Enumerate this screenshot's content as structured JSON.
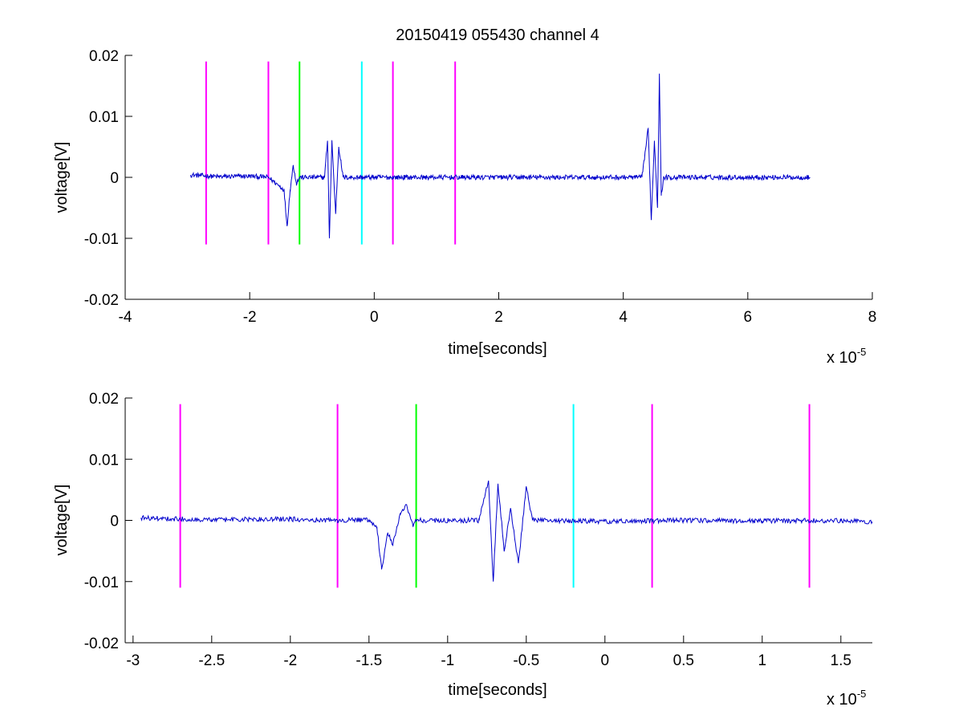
{
  "chart_data": [
    {
      "type": "line",
      "title": "20150419 055430 channel 4",
      "xlabel": "time[seconds]",
      "ylabel": "voltage[V]",
      "x_exponent_base": "x 10",
      "x_exponent_power": "-5",
      "xlim": [
        -4,
        8
      ],
      "ylim": [
        -0.02,
        0.02
      ],
      "x_ticks": [
        -4,
        -2,
        0,
        2,
        4,
        6,
        8
      ],
      "x_tick_labels": [
        "-4",
        "-2",
        "0",
        "2",
        "4",
        "6",
        "8"
      ],
      "y_ticks": [
        0.02,
        0.01,
        0,
        -0.01,
        -0.02
      ],
      "y_tick_labels": [
        "0.02",
        "0.01",
        "0",
        "-0.01",
        "-0.02"
      ],
      "grid": false,
      "legend": "none",
      "vertical_markers": [
        {
          "x": -2.7,
          "ymin": -0.011,
          "ymax": 0.019,
          "color": "#ff00ff"
        },
        {
          "x": -1.7,
          "ymin": -0.011,
          "ymax": 0.019,
          "color": "#ff00ff"
        },
        {
          "x": -1.2,
          "ymin": -0.011,
          "ymax": 0.019,
          "color": "#00ff00"
        },
        {
          "x": -0.2,
          "ymin": -0.011,
          "ymax": 0.019,
          "color": "#00ffff"
        },
        {
          "x": 0.3,
          "ymin": -0.011,
          "ymax": 0.019,
          "color": "#ff00ff"
        },
        {
          "x": 1.3,
          "ymin": -0.011,
          "ymax": 0.019,
          "color": "#ff00ff"
        }
      ],
      "series": [
        {
          "color": "#0000cc",
          "x_range": [
            -2.95,
            7.0
          ],
          "noise_amplitude": 0.0004,
          "points": [
            [
              -2.95,
              0.0004
            ],
            [
              -2.5,
              0.0001
            ],
            [
              -2.0,
              0.0002
            ],
            [
              -1.7,
              0.0
            ],
            [
              -1.45,
              -0.002
            ],
            [
              -1.4,
              -0.008
            ],
            [
              -1.35,
              -0.002
            ],
            [
              -1.3,
              0.002
            ],
            [
              -1.25,
              -0.001
            ],
            [
              -1.2,
              0.0
            ],
            [
              -0.8,
              0.0
            ],
            [
              -0.75,
              0.006
            ],
            [
              -0.72,
              -0.01
            ],
            [
              -0.68,
              0.006
            ],
            [
              -0.62,
              -0.006
            ],
            [
              -0.57,
              0.005
            ],
            [
              -0.5,
              0.0
            ],
            [
              0.0,
              0.0
            ],
            [
              2.0,
              0.0
            ],
            [
              4.3,
              0.0
            ],
            [
              4.4,
              0.008
            ],
            [
              4.45,
              -0.007
            ],
            [
              4.5,
              0.006
            ],
            [
              4.55,
              -0.005
            ],
            [
              4.58,
              0.017
            ],
            [
              4.61,
              -0.003
            ],
            [
              4.65,
              0.0
            ],
            [
              6.0,
              0.0
            ],
            [
              7.0,
              0.0
            ]
          ]
        }
      ]
    },
    {
      "type": "line",
      "title": "",
      "xlabel": "time[seconds]",
      "ylabel": "voltage[V]",
      "x_exponent_base": "x 10",
      "x_exponent_power": "-5",
      "xlim": [
        -3.05,
        1.7
      ],
      "ylim": [
        -0.02,
        0.02
      ],
      "x_ticks": [
        -3,
        -2.5,
        -2,
        -1.5,
        -1,
        -0.5,
        0,
        0.5,
        1,
        1.5
      ],
      "x_tick_labels": [
        "-3",
        "-2.5",
        "-2",
        "-1.5",
        "-1",
        "-0.5",
        "0",
        "0.5",
        "1",
        "1.5"
      ],
      "y_ticks": [
        0.02,
        0.01,
        0,
        -0.01,
        -0.02
      ],
      "y_tick_labels": [
        "0.02",
        "0.01",
        "0",
        "-0.01",
        "-0.02"
      ],
      "grid": false,
      "legend": "none",
      "vertical_markers": [
        {
          "x": -2.7,
          "ymin": -0.011,
          "ymax": 0.019,
          "color": "#ff00ff"
        },
        {
          "x": -1.7,
          "ymin": -0.011,
          "ymax": 0.019,
          "color": "#ff00ff"
        },
        {
          "x": -1.2,
          "ymin": -0.011,
          "ymax": 0.019,
          "color": "#00ff00"
        },
        {
          "x": -0.2,
          "ymin": -0.011,
          "ymax": 0.019,
          "color": "#00ffff"
        },
        {
          "x": 0.3,
          "ymin": -0.011,
          "ymax": 0.019,
          "color": "#ff00ff"
        },
        {
          "x": 1.3,
          "ymin": -0.011,
          "ymax": 0.019,
          "color": "#ff00ff"
        }
      ],
      "series": [
        {
          "color": "#0000cc",
          "x_range": [
            -2.95,
            1.7
          ],
          "noise_amplitude": 0.0004,
          "points": [
            [
              -2.95,
              0.0004
            ],
            [
              -2.5,
              0.0001
            ],
            [
              -2.0,
              0.0002
            ],
            [
              -1.7,
              0.0
            ],
            [
              -1.5,
              0.0001
            ],
            [
              -1.45,
              -0.001
            ],
            [
              -1.42,
              -0.008
            ],
            [
              -1.38,
              -0.002
            ],
            [
              -1.35,
              -0.004
            ],
            [
              -1.3,
              0.001
            ],
            [
              -1.26,
              0.0025
            ],
            [
              -1.22,
              -0.001
            ],
            [
              -1.2,
              0.0
            ],
            [
              -0.8,
              0.0
            ],
            [
              -0.74,
              0.0065
            ],
            [
              -0.71,
              -0.01
            ],
            [
              -0.68,
              0.006
            ],
            [
              -0.64,
              -0.005
            ],
            [
              -0.6,
              0.002
            ],
            [
              -0.55,
              -0.007
            ],
            [
              -0.5,
              0.0055
            ],
            [
              -0.46,
              0.0
            ],
            [
              0.0,
              -0.0002
            ],
            [
              0.5,
              0.0
            ],
            [
              1.0,
              -0.0001
            ],
            [
              1.5,
              0.0
            ],
            [
              1.7,
              -0.0002
            ]
          ]
        }
      ]
    }
  ]
}
